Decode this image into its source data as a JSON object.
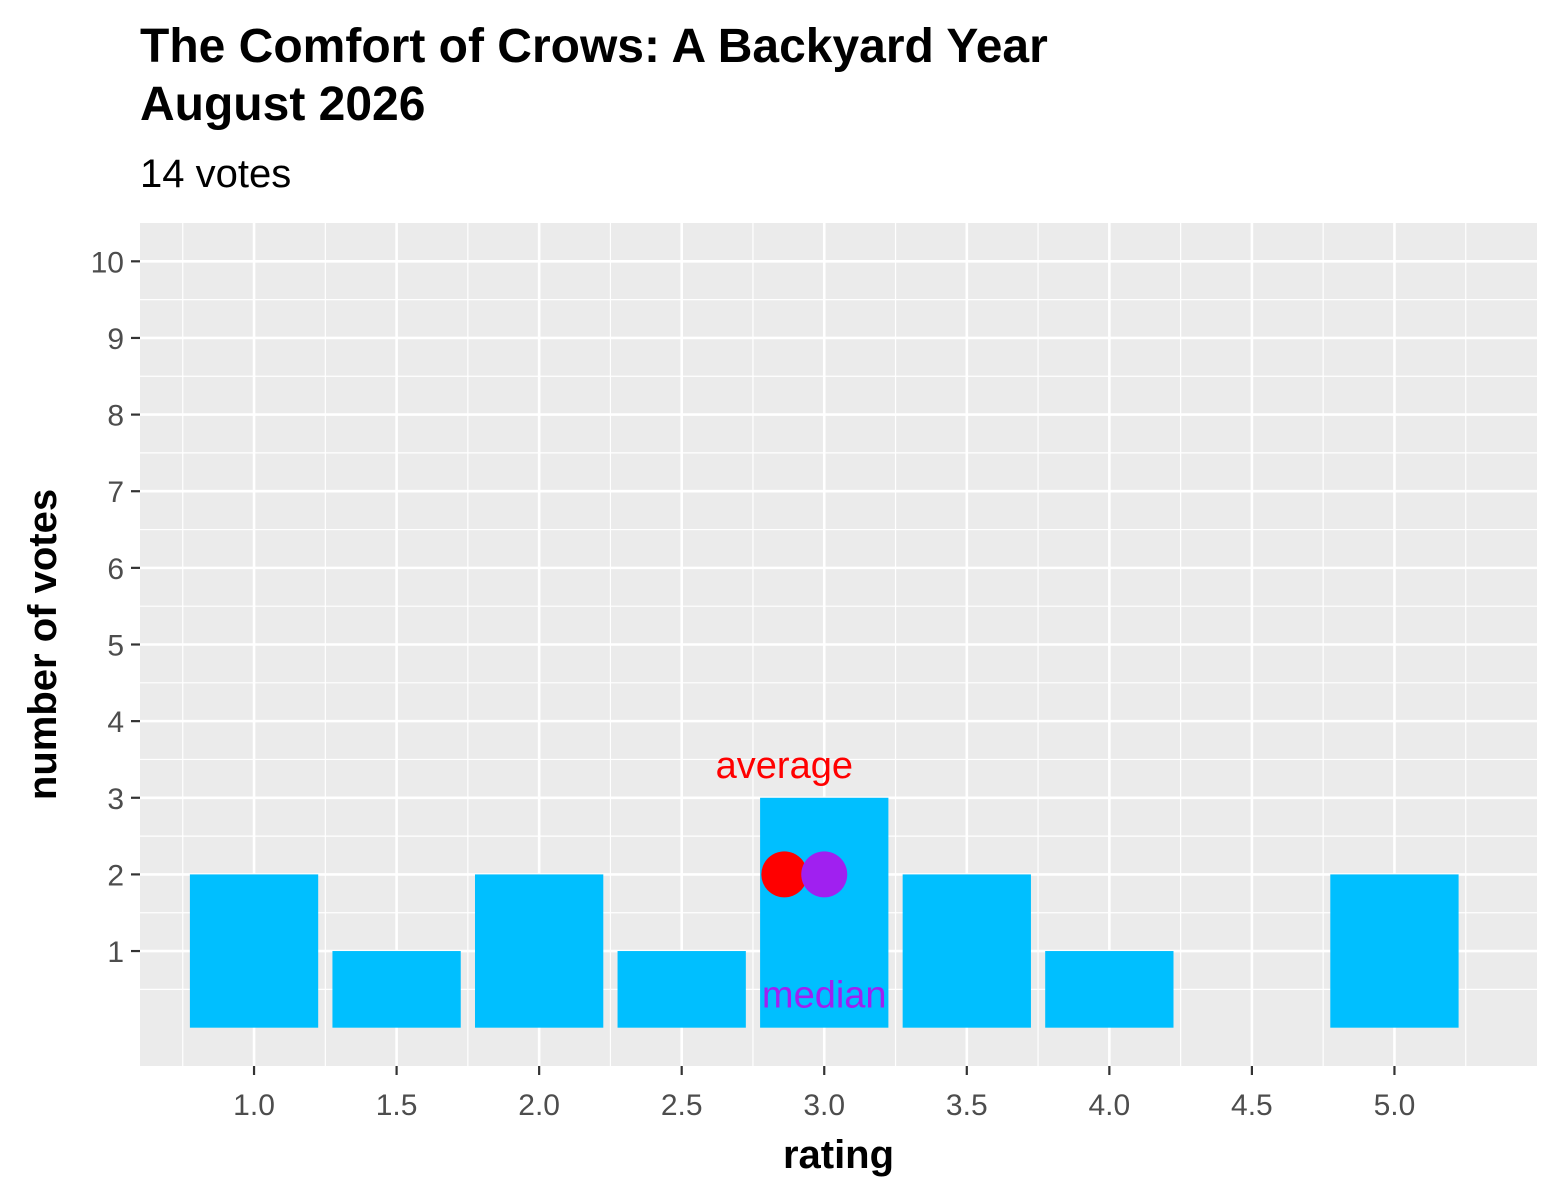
{
  "chart_data": {
    "type": "bar",
    "title_line1": "The Comfort of Crows: A Backyard Year",
    "title_line2": "August 2026",
    "subtitle": "14 votes",
    "xlabel": "rating",
    "ylabel": "number of votes",
    "x_ticks": [
      "1.0",
      "1.5",
      "2.0",
      "2.5",
      "3.0",
      "3.5",
      "4.0",
      "4.5",
      "5.0"
    ],
    "y_ticks": [
      "1",
      "2",
      "3",
      "4",
      "5",
      "6",
      "7",
      "8",
      "9",
      "10"
    ],
    "xlim": [
      0.6,
      5.5
    ],
    "ylim": [
      -0.5,
      10.5
    ],
    "bar_color": "#00BFFF",
    "panel_background": "#EBEBEB",
    "grid": true,
    "bars": [
      {
        "x": 1.0,
        "value": 2
      },
      {
        "x": 1.5,
        "value": 1
      },
      {
        "x": 2.0,
        "value": 2
      },
      {
        "x": 2.5,
        "value": 1
      },
      {
        "x": 3.0,
        "value": 3
      },
      {
        "x": 3.5,
        "value": 2
      },
      {
        "x": 4.0,
        "value": 1
      },
      {
        "x": 5.0,
        "value": 2
      }
    ],
    "average": {
      "label": "average",
      "x": 2.86,
      "y": 2,
      "color": "#FF0000"
    },
    "median": {
      "label": "median",
      "x": 3.0,
      "y": 2,
      "color": "#A020F0"
    }
  }
}
